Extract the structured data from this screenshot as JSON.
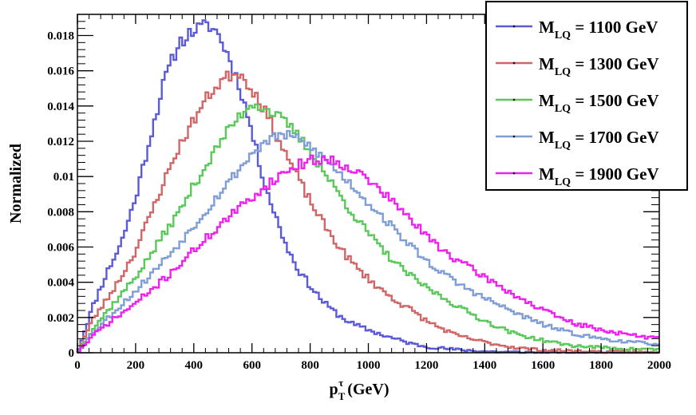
{
  "chart_data": {
    "type": "line",
    "style": "step-histogram",
    "title": "",
    "xlabel": {
      "base": "p",
      "sub": "T",
      "sup": "τ",
      "unit": " (GeV)"
    },
    "ylabel": "Normalized",
    "xlim": [
      0,
      2000
    ],
    "ylim": [
      0,
      0.0192
    ],
    "x_ticks": [
      0,
      200,
      400,
      600,
      800,
      1000,
      1200,
      1400,
      1600,
      1800,
      2000
    ],
    "x_tick_labels": [
      "0",
      "200",
      "400",
      "600",
      "800",
      "1000",
      "1200",
      "1400",
      "1600",
      "1800",
      "2000"
    ],
    "y_ticks": [
      0,
      0.002,
      0.004,
      0.006,
      0.008,
      0.01,
      0.012,
      0.014,
      0.016,
      0.018
    ],
    "y_tick_labels": [
      "0",
      "0.002",
      "0.004",
      "0.006",
      "0.008",
      "0.01",
      "0.012",
      "0.014",
      "0.016",
      "0.018"
    ],
    "bin_width": 10,
    "legend_position": "top-right",
    "series": [
      {
        "name": "M_LQ = 1100 GeV",
        "label_main": "M",
        "label_sub": "LQ",
        "label_rest": " = 1100 GeV",
        "color": "#5b5bd6",
        "points": [
          [
            0,
            0
          ],
          [
            50,
            0.0025
          ],
          [
            100,
            0.0045
          ],
          [
            150,
            0.0062
          ],
          [
            200,
            0.0088
          ],
          [
            250,
            0.0122
          ],
          [
            300,
            0.0155
          ],
          [
            350,
            0.0176
          ],
          [
            400,
            0.0183
          ],
          [
            450,
            0.0186
          ],
          [
            480,
            0.0182
          ],
          [
            520,
            0.0168
          ],
          [
            560,
            0.015
          ],
          [
            600,
            0.0125
          ],
          [
            640,
            0.0098
          ],
          [
            680,
            0.0078
          ],
          [
            720,
            0.006
          ],
          [
            760,
            0.0047
          ],
          [
            800,
            0.0038
          ],
          [
            850,
            0.0028
          ],
          [
            900,
            0.0021
          ],
          [
            950,
            0.0016
          ],
          [
            1000,
            0.0013
          ],
          [
            1050,
            0.001
          ],
          [
            1100,
            0.00075
          ],
          [
            1150,
            0.0005
          ],
          [
            1200,
            0.00035
          ],
          [
            1300,
            0.00018
          ],
          [
            1400,
            8e-05
          ],
          [
            1500,
            3e-05
          ],
          [
            1700,
            1e-05
          ],
          [
            2000,
            0
          ]
        ],
        "noise": 0.00032,
        "seed": 11
      },
      {
        "name": "M_LQ = 1300 GeV",
        "label_main": "M",
        "label_sub": "LQ",
        "label_rest": " = 1300 GeV",
        "color": "#d06666",
        "points": [
          [
            0,
            0
          ],
          [
            50,
            0.0018
          ],
          [
            100,
            0.003
          ],
          [
            150,
            0.0043
          ],
          [
            200,
            0.0058
          ],
          [
            250,
            0.0078
          ],
          [
            300,
            0.0098
          ],
          [
            350,
            0.0117
          ],
          [
            400,
            0.0132
          ],
          [
            450,
            0.0146
          ],
          [
            500,
            0.0155
          ],
          [
            550,
            0.016
          ],
          [
            580,
            0.0154
          ],
          [
            620,
            0.0145
          ],
          [
            660,
            0.0132
          ],
          [
            700,
            0.0118
          ],
          [
            750,
            0.0102
          ],
          [
            800,
            0.0086
          ],
          [
            850,
            0.0072
          ],
          [
            900,
            0.006
          ],
          [
            950,
            0.005
          ],
          [
            1000,
            0.0042
          ],
          [
            1050,
            0.0035
          ],
          [
            1100,
            0.0029
          ],
          [
            1150,
            0.0024
          ],
          [
            1200,
            0.0018
          ],
          [
            1300,
            0.001
          ],
          [
            1400,
            0.0006
          ],
          [
            1500,
            0.0003
          ],
          [
            1600,
            0.00015
          ],
          [
            1800,
            6e-05
          ],
          [
            2000,
            2e-05
          ]
        ],
        "noise": 0.0003,
        "seed": 23
      },
      {
        "name": "M_LQ = 1500 GeV",
        "label_main": "M",
        "label_sub": "LQ",
        "label_rest": " = 1500 GeV",
        "color": "#5ac85a",
        "points": [
          [
            0,
            0
          ],
          [
            50,
            0.0013
          ],
          [
            100,
            0.0023
          ],
          [
            150,
            0.0033
          ],
          [
            200,
            0.0043
          ],
          [
            250,
            0.0055
          ],
          [
            300,
            0.0068
          ],
          [
            350,
            0.008
          ],
          [
            400,
            0.0095
          ],
          [
            450,
            0.0108
          ],
          [
            500,
            0.0122
          ],
          [
            550,
            0.0133
          ],
          [
            600,
            0.0142
          ],
          [
            650,
            0.0138
          ],
          [
            700,
            0.0133
          ],
          [
            750,
            0.0125
          ],
          [
            800,
            0.0114
          ],
          [
            850,
            0.0102
          ],
          [
            900,
            0.009
          ],
          [
            950,
            0.0078
          ],
          [
            1000,
            0.0068
          ],
          [
            1050,
            0.0058
          ],
          [
            1100,
            0.005
          ],
          [
            1150,
            0.0043
          ],
          [
            1200,
            0.0037
          ],
          [
            1300,
            0.0027
          ],
          [
            1400,
            0.0018
          ],
          [
            1500,
            0.0011
          ],
          [
            1600,
            0.0007
          ],
          [
            1700,
            0.0004
          ],
          [
            1800,
            0.0003
          ],
          [
            1900,
            0.00022
          ],
          [
            2000,
            0.0002
          ]
        ],
        "noise": 0.00028,
        "seed": 37
      },
      {
        "name": "M_LQ = 1700 GeV",
        "label_main": "M",
        "label_sub": "LQ",
        "label_rest": " = 1700 GeV",
        "color": "#7f9ed6",
        "points": [
          [
            0,
            0
          ],
          [
            50,
            0.0011
          ],
          [
            100,
            0.0019
          ],
          [
            150,
            0.0027
          ],
          [
            200,
            0.0035
          ],
          [
            250,
            0.0044
          ],
          [
            300,
            0.0053
          ],
          [
            350,
            0.0062
          ],
          [
            400,
            0.0072
          ],
          [
            450,
            0.0082
          ],
          [
            500,
            0.0093
          ],
          [
            550,
            0.0103
          ],
          [
            600,
            0.0113
          ],
          [
            650,
            0.012
          ],
          [
            700,
            0.0124
          ],
          [
            750,
            0.0122
          ],
          [
            800,
            0.0117
          ],
          [
            850,
            0.011
          ],
          [
            900,
            0.0102
          ],
          [
            950,
            0.0094
          ],
          [
            1000,
            0.0085
          ],
          [
            1050,
            0.0077
          ],
          [
            1100,
            0.0068
          ],
          [
            1150,
            0.006
          ],
          [
            1200,
            0.0052
          ],
          [
            1300,
            0.004
          ],
          [
            1400,
            0.0031
          ],
          [
            1500,
            0.0023
          ],
          [
            1600,
            0.0016
          ],
          [
            1700,
            0.0011
          ],
          [
            1800,
            0.0008
          ],
          [
            1900,
            0.0006
          ],
          [
            2000,
            0.0005
          ]
        ],
        "noise": 0.00028,
        "seed": 53
      },
      {
        "name": "M_LQ = 1900 GeV",
        "label_main": "M",
        "label_sub": "LQ",
        "label_rest": " = 1900 GeV",
        "color": "#ee22ee",
        "points": [
          [
            0,
            0
          ],
          [
            50,
            0.0009
          ],
          [
            100,
            0.0016
          ],
          [
            150,
            0.0022
          ],
          [
            200,
            0.0028
          ],
          [
            250,
            0.0035
          ],
          [
            300,
            0.0042
          ],
          [
            350,
            0.005
          ],
          [
            400,
            0.0058
          ],
          [
            450,
            0.0066
          ],
          [
            500,
            0.0074
          ],
          [
            550,
            0.0081
          ],
          [
            600,
            0.0088
          ],
          [
            650,
            0.0095
          ],
          [
            700,
            0.0101
          ],
          [
            750,
            0.0106
          ],
          [
            800,
            0.0109
          ],
          [
            850,
            0.011
          ],
          [
            900,
            0.0108
          ],
          [
            950,
            0.0104
          ],
          [
            1000,
            0.0098
          ],
          [
            1050,
            0.0091
          ],
          [
            1100,
            0.0083
          ],
          [
            1150,
            0.0075
          ],
          [
            1200,
            0.0066
          ],
          [
            1300,
            0.0053
          ],
          [
            1400,
            0.0043
          ],
          [
            1500,
            0.0033
          ],
          [
            1600,
            0.0024
          ],
          [
            1700,
            0.0017
          ],
          [
            1800,
            0.0013
          ],
          [
            1900,
            0.001
          ],
          [
            2000,
            0.0008
          ]
        ],
        "noise": 0.0003,
        "seed": 71
      }
    ]
  }
}
